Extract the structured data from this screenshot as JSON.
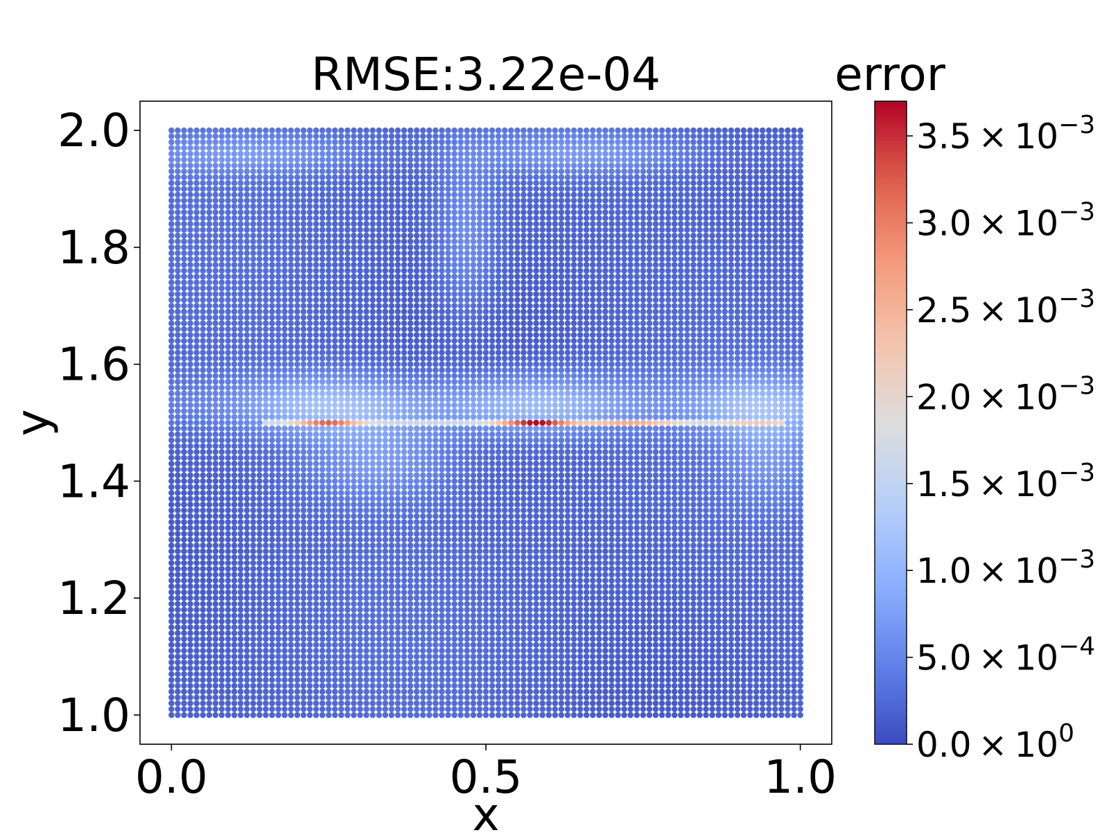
{
  "chart_data": {
    "type": "scatter",
    "title": "RMSE:3.22e-04",
    "xlabel": "x",
    "ylabel": "y",
    "xlim": [
      -0.05,
      1.05
    ],
    "ylim": [
      0.95,
      2.05
    ],
    "grid": false,
    "x_ticks": [
      {
        "value": 0.0,
        "label": "0.0"
      },
      {
        "value": 0.5,
        "label": "0.5"
      },
      {
        "value": 1.0,
        "label": "1.0"
      }
    ],
    "y_ticks": [
      {
        "value": 1.0,
        "label": "1.0"
      },
      {
        "value": 1.2,
        "label": "1.2"
      },
      {
        "value": 1.4,
        "label": "1.4"
      },
      {
        "value": 1.6,
        "label": "1.6"
      },
      {
        "value": 1.8,
        "label": "1.8"
      },
      {
        "value": 2.0,
        "label": "2.0"
      }
    ],
    "points": {
      "x_range": [
        0.0,
        1.0
      ],
      "y_range": [
        1.0,
        2.0
      ],
      "n_x": 101,
      "n_y": 101,
      "colormap": "coolwarm"
    },
    "error_features": [
      {
        "x_range": [
          0.15,
          0.95
        ],
        "y": 1.5,
        "value_range": [
          0.0015,
          0.0025
        ]
      },
      {
        "x_center": 0.25,
        "y": 1.5,
        "peak_error": 0.0032
      },
      {
        "x_center": 0.58,
        "y": 1.5,
        "peak_error": 0.0037
      },
      {
        "x_center": 0.73,
        "y": 1.5,
        "peak_error": 0.0028
      },
      {
        "x_center": 0.93,
        "y": 1.5,
        "peak_error": 0.0022
      }
    ],
    "colorbar": {
      "title": "error",
      "min": 0.0,
      "max": 0.0037,
      "ticks": [
        {
          "value": 0.0,
          "mantissa": "0.0",
          "times": "×",
          "base": "10",
          "exponent": "0"
        },
        {
          "value": 0.0005,
          "mantissa": "5.0",
          "times": "×",
          "base": "10",
          "exponent": "−4"
        },
        {
          "value": 0.001,
          "mantissa": "1.0",
          "times": "×",
          "base": "10",
          "exponent": "−3"
        },
        {
          "value": 0.0015,
          "mantissa": "1.5",
          "times": "×",
          "base": "10",
          "exponent": "−3"
        },
        {
          "value": 0.002,
          "mantissa": "2.0",
          "times": "×",
          "base": "10",
          "exponent": "−3"
        },
        {
          "value": 0.0025,
          "mantissa": "2.5",
          "times": "×",
          "base": "10",
          "exponent": "−3"
        },
        {
          "value": 0.003,
          "mantissa": "3.0",
          "times": "×",
          "base": "10",
          "exponent": "−3"
        },
        {
          "value": 0.0035,
          "mantissa": "3.5",
          "times": "×",
          "base": "10",
          "exponent": "−3"
        }
      ]
    }
  }
}
